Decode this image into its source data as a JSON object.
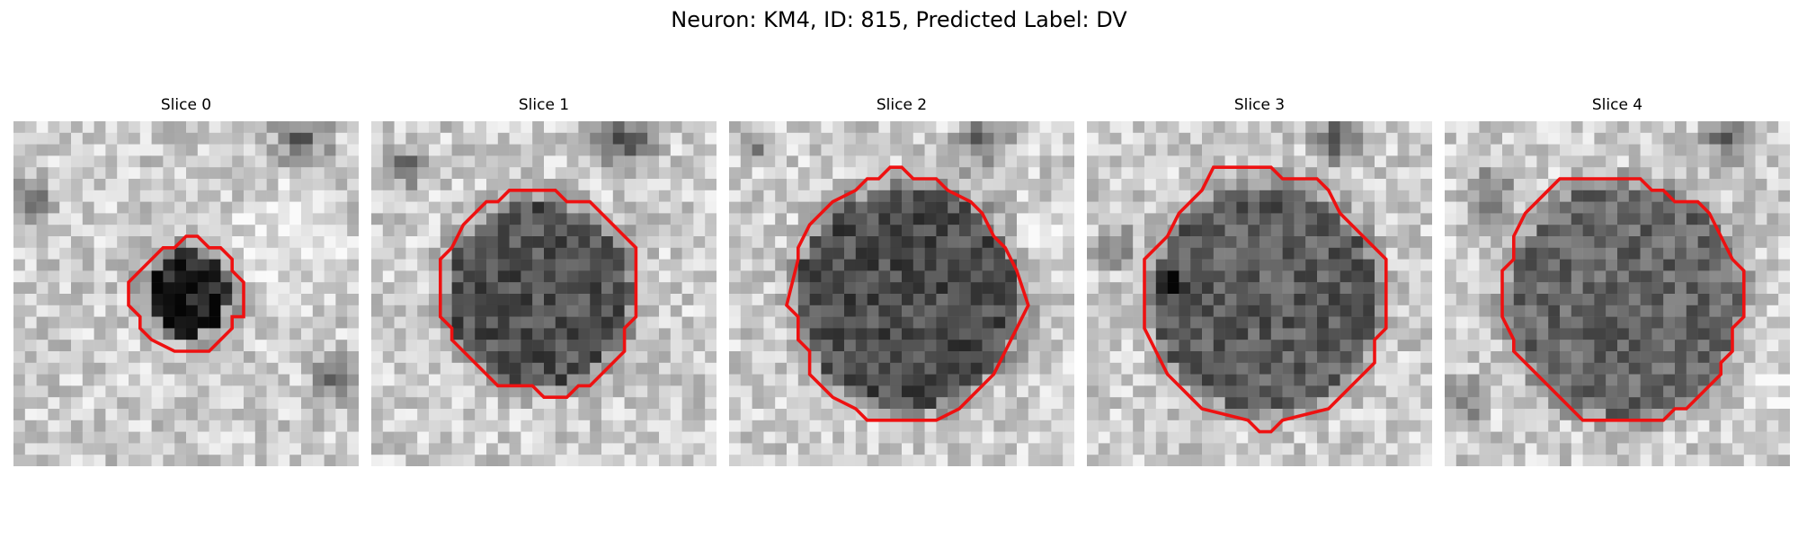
{
  "figure": {
    "title": "Neuron: KM4, ID: 815, Predicted Label: DV"
  },
  "contour_color": "#ee1111",
  "panels": [
    {
      "title": "Slice 0"
    },
    {
      "title": "Slice 1"
    },
    {
      "title": "Slice 2"
    },
    {
      "title": "Slice 3"
    },
    {
      "title": "Slice 4"
    }
  ]
}
